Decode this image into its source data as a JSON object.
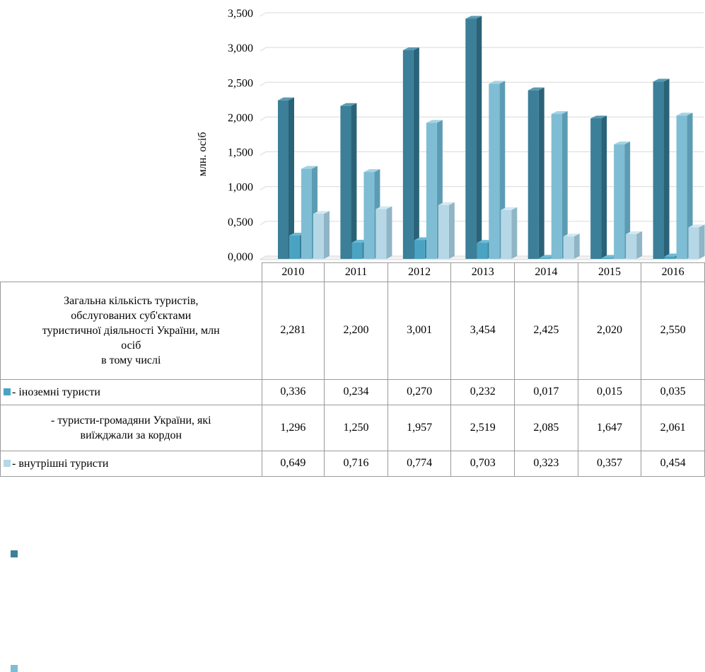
{
  "chart_data": {
    "type": "bar",
    "ylabel": "млн. осіб",
    "ylim": [
      0,
      3.5
    ],
    "yticks": [
      "0,000",
      "0,500",
      "1,000",
      "1,500",
      "2,000",
      "2,500",
      "3,000",
      "3,500"
    ],
    "categories": [
      "2010",
      "2011",
      "2012",
      "2013",
      "2014",
      "2015",
      "2016"
    ],
    "grid": true,
    "legend": "table-below",
    "series": [
      {
        "name": "Загальна кількість туристів, обслугованих суб'єктами туристичної діяльності України, млн осіб в тому числі",
        "label_lines": [
          "Загальна кількість туристів,",
          "обслугованих суб'єктами",
          "туристичної діяльності України, млн",
          "осіб",
          "в тому числі"
        ],
        "color": "#3b7f98",
        "side": "#2a6278",
        "top": "#5a9ab2",
        "values": [
          2.281,
          2.2,
          3.001,
          3.454,
          2.425,
          2.02,
          2.55
        ],
        "display": [
          "2,281",
          "2,200",
          "3,001",
          "3,454",
          "2,425",
          "2,020",
          "2,550"
        ]
      },
      {
        "name": "- іноземні туристи",
        "label_lines": [
          "- іноземні туристи"
        ],
        "color": "#4aa3c2",
        "side": "#357f99",
        "top": "#6ebad5",
        "values": [
          0.336,
          0.234,
          0.27,
          0.232,
          0.017,
          0.015,
          0.035
        ],
        "display": [
          "0,336",
          "0,234",
          "0,270",
          "0,232",
          "0,017",
          "0,015",
          "0,035"
        ]
      },
      {
        "name": "- туристи-громадяни України, які виїжджали за кордон",
        "label_lines": [
          "- туристи-громадяни України, які",
          "виїжджали за кордон"
        ],
        "color": "#7fbdd4",
        "side": "#5b9cb4",
        "top": "#a3d2e3",
        "values": [
          1.296,
          1.25,
          1.957,
          2.519,
          2.085,
          1.647,
          2.061
        ],
        "display": [
          "1,296",
          "1,250",
          "1,957",
          "2,519",
          "2,085",
          "1,647",
          "2,061"
        ]
      },
      {
        "name": "- внутрішні туристи",
        "label_lines": [
          "- внутрішні туристи"
        ],
        "color": "#b5d7e6",
        "side": "#8fb5c6",
        "top": "#d3e8f1",
        "values": [
          0.649,
          0.716,
          0.774,
          0.703,
          0.323,
          0.357,
          0.454
        ],
        "display": [
          "0,649",
          "0,716",
          "0,774",
          "0,703",
          "0,323",
          "0,357",
          "0,454"
        ]
      }
    ]
  }
}
